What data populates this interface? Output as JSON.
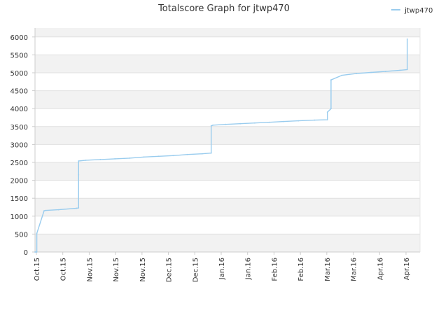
{
  "chart_data": {
    "type": "line",
    "title": "Totalscore Graph for jtwp470",
    "xlabel": "",
    "ylabel": "",
    "x_tick_labels": [
      "Oct.15",
      "Oct.15",
      "Nov.15",
      "Nov.15",
      "Nov.15",
      "Dec.15",
      "Dec.15",
      "Jan.16",
      "Jan.16",
      "Feb.16",
      "Feb.16",
      "Mar.16",
      "Mar.16",
      "Apr.16",
      "Apr.16"
    ],
    "y_ticks": [
      0,
      500,
      1000,
      1500,
      2000,
      2500,
      3000,
      3500,
      4000,
      4500,
      5000,
      5500,
      6000
    ],
    "ylim": [
      0,
      6250
    ],
    "xlim": [
      "2015-10-01",
      "2016-04-30"
    ],
    "grid": "horizontal bands",
    "legend": {
      "position": "top-right"
    },
    "colors": {
      "series": "#99ccee",
      "band": "#f2f2f2",
      "gridline": "#e0e0e0"
    },
    "series": [
      {
        "name": "jtwp470",
        "x": [
          "2015-10-01",
          "2015-10-02",
          "2015-10-02",
          "2015-10-06",
          "2015-10-07",
          "2015-10-14",
          "2015-10-24",
          "2015-10-25",
          "2015-10-25",
          "2015-10-25",
          "2015-10-29",
          "2015-11-06",
          "2015-11-14",
          "2015-11-22",
          "2015-11-30",
          "2015-12-08",
          "2015-12-16",
          "2015-12-24",
          "2016-01-01",
          "2016-01-06",
          "2016-01-06",
          "2016-01-07",
          "2016-01-14",
          "2016-01-22",
          "2016-01-30",
          "2016-02-07",
          "2016-02-15",
          "2016-02-23",
          "2016-03-03",
          "2016-03-10",
          "2016-03-10",
          "2016-03-12",
          "2016-03-12",
          "2016-03-18",
          "2016-03-26",
          "2016-04-03",
          "2016-04-11",
          "2016-04-19",
          "2016-04-23",
          "2016-04-23"
        ],
        "values": [
          0,
          0,
          520,
          1150,
          1160,
          1180,
          1220,
          1230,
          2150,
          2540,
          2560,
          2580,
          2600,
          2620,
          2650,
          2670,
          2690,
          2720,
          2740,
          2760,
          3520,
          3540,
          3560,
          3580,
          3600,
          3620,
          3640,
          3660,
          3680,
          3690,
          3900,
          4000,
          4800,
          4930,
          4980,
          5010,
          5040,
          5070,
          5090,
          5940
        ]
      }
    ]
  }
}
